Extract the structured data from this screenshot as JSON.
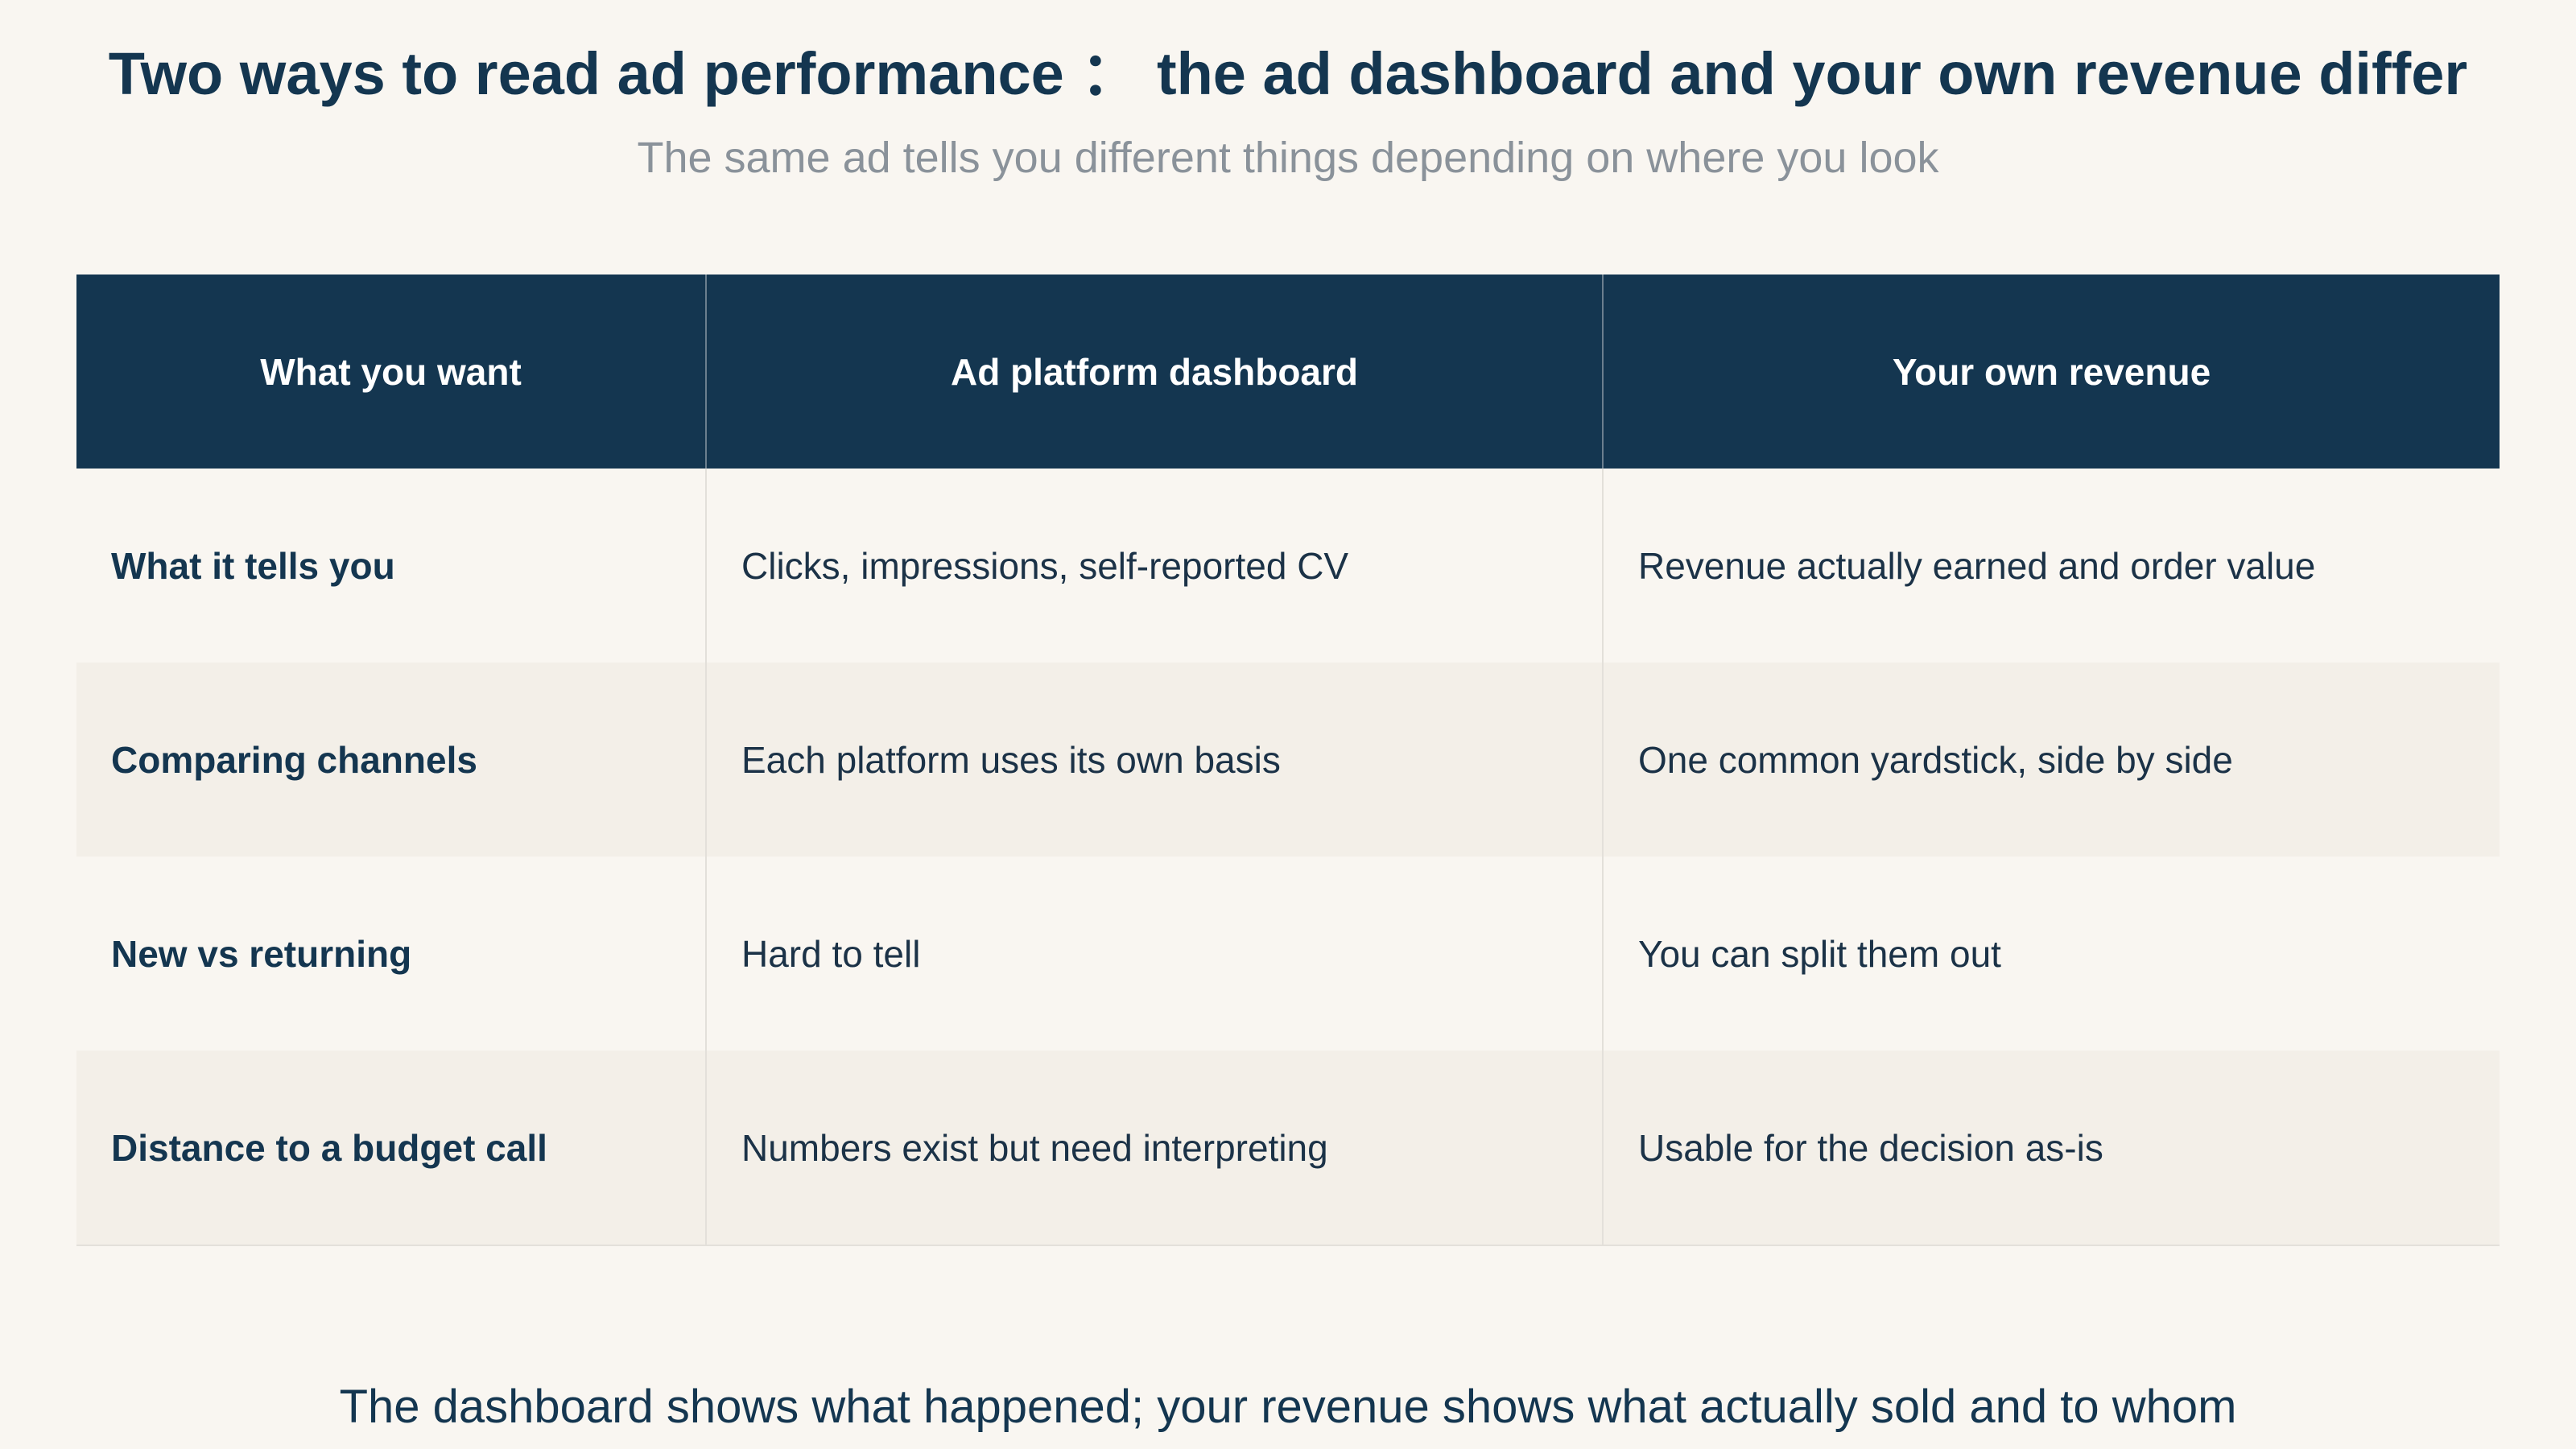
{
  "header": {
    "title": "Two ways to read ad performance ： the ad dashboard and your own revenue differ",
    "subtitle": "The same ad tells you different things depending on where you look"
  },
  "table": {
    "columns": [
      "What you want",
      "Ad platform dashboard",
      "Your own revenue"
    ],
    "rows": [
      {
        "label": "What it tells you",
        "dashboard": "Clicks, impressions, self-reported CV",
        "revenue": "Revenue actually earned and order value"
      },
      {
        "label": "Comparing channels",
        "dashboard": "Each platform uses its own basis",
        "revenue": "One common yardstick, side by side"
      },
      {
        "label": "New vs returning",
        "dashboard": "Hard to tell",
        "revenue": "You can split them out"
      },
      {
        "label": "Distance to a budget call",
        "dashboard": "Numbers exist but need interpreting",
        "revenue": "Usable for the decision as-is"
      }
    ]
  },
  "footer": {
    "text": "The dashboard shows what happened; your revenue shows what actually sold and to whom"
  },
  "colors": {
    "background": "#f9f6f1",
    "header_fill": "#143650",
    "alt_row": "#f3efe8",
    "text": "#143650",
    "subtitle": "#8a929a"
  }
}
